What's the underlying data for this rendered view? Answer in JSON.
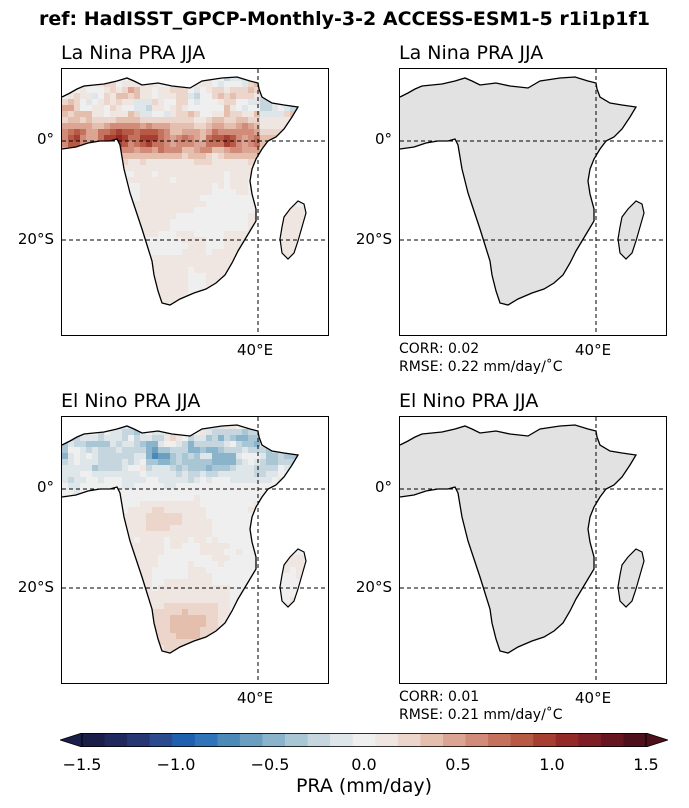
{
  "figure": {
    "suptitle": "ref: HadISST_GPCP-Monthly-3-2 ACCESS-ESM1-5 r1i1p1f1"
  },
  "chart_data": [
    {
      "type": "heatmap",
      "title": "La Nina PRA JJA",
      "lat_ticks": [
        "0°",
        "20°S"
      ],
      "lon_ticks": [
        "40°E"
      ],
      "dataset": "reference",
      "pattern": "strong positive anomalies along equatorial West/Central Africa near 0°-10°N; weak near-zero elsewhere"
    },
    {
      "type": "heatmap",
      "title": "La Nina PRA JJA",
      "lat_ticks": [
        "0°",
        "20°S"
      ],
      "lon_ticks": [
        "40°E"
      ],
      "dataset": "model",
      "stats": {
        "corr_label": "CORR: 0.02",
        "rmse_label": "RMSE: 0.22 mm/day/$^\\circ$C"
      }
    },
    {
      "type": "heatmap",
      "title": "El Nino PRA JJA",
      "lat_ticks": [
        "0°",
        "20°S"
      ],
      "lon_ticks": [
        "40°E"
      ],
      "dataset": "reference",
      "pattern": "negative anomalies over northern tropical Africa 5°-15°N; weak positive in southern Africa"
    },
    {
      "type": "heatmap",
      "title": "El Nino PRA JJA",
      "lat_ticks": [
        "0°",
        "20°S"
      ],
      "lon_ticks": [
        "40°E"
      ],
      "dataset": "model",
      "stats": {
        "corr_label": "CORR: 0.01",
        "rmse_label": "RMSE: 0.21 mm/day/$^\\circ$C"
      }
    }
  ],
  "colorbar": {
    "label": "PRA (mm/day)",
    "min": -1.5,
    "max": 1.5,
    "ticks": [
      "−1.5",
      "−1.0",
      "−0.5",
      "0.0",
      "0.5",
      "1.0",
      "1.5"
    ],
    "tick_values": [
      -1.5,
      -1.0,
      -0.5,
      0.0,
      0.5,
      1.0,
      1.5
    ],
    "levels": 30,
    "extend": "both",
    "colors": [
      "#1a1f4a",
      "#20295e",
      "#263773",
      "#2b4b8e",
      "#1f5fb0",
      "#2f74b8",
      "#4b89b9",
      "#6a9fc1",
      "#8ab4cb",
      "#a9c6d4",
      "#c5d6de",
      "#dfe6ea",
      "#efefef",
      "#efe6e2",
      "#ecd6cc",
      "#e5bfae",
      "#dca593",
      "#d18b78",
      "#c4725d",
      "#b65a45",
      "#a63e31",
      "#932a28",
      "#7d1f24",
      "#661620",
      "#4e101a"
    ],
    "land_fill": "#e2e2e2",
    "pos_color": "#c0553a",
    "neg_color": "#2f79a8"
  },
  "stats_text": {
    "p2_corr": "CORR: 0.02",
    "p2_rmse": "RMSE: 0.22 mm/day/˚C",
    "p4_corr": "CORR: 0.01",
    "p4_rmse": "RMSE: 0.21 mm/day/˚C"
  }
}
